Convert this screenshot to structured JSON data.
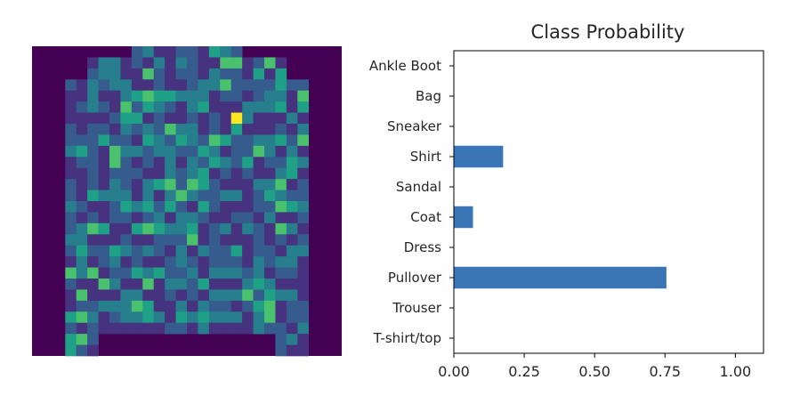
{
  "chart_data": [
    {
      "type": "heatmap",
      "title": "",
      "colormap": "viridis",
      "grid_size": 28,
      "axes_visible": false,
      "description_hint": "28x28 grayscale fashion image (pullover) rendered with viridis colormap; mostly low-intensity values inside a sweater silhouette with one bright pixel near upper right"
    },
    {
      "type": "bar",
      "orientation": "horizontal",
      "title": "Class Probability",
      "categories": [
        "T-shirt/top",
        "Trouser",
        "Pullover",
        "Dress",
        "Coat",
        "Sandal",
        "Shirt",
        "Sneaker",
        "Bag",
        "Ankle Boot"
      ],
      "values": [
        0.0,
        0.0,
        0.755,
        0.0,
        0.068,
        0.0,
        0.175,
        0.0,
        0.0,
        0.0
      ],
      "xlim": [
        0,
        1.1
      ],
      "xticks": [
        "0.00",
        "0.25",
        "0.50",
        "0.75",
        "1.00"
      ],
      "xtick_values": [
        0,
        0.25,
        0.5,
        0.75,
        1.0
      ],
      "bar_color": "#3a76b5",
      "grid": false,
      "xlabel": "",
      "ylabel": ""
    }
  ],
  "colors": {
    "bar": "#3a76b5",
    "viridis_low": "#440154",
    "viridis_high": "#fde725"
  }
}
